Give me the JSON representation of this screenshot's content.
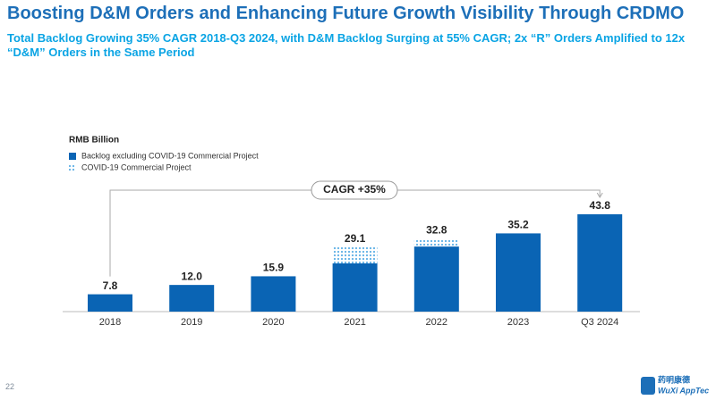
{
  "title": "Boosting D&M Orders and Enhancing Future Growth Visibility Through CRDMO",
  "subtitle": "Total Backlog Growing 35% CAGR 2018-Q3 2024, with D&M Backlog Surging at 55% CAGR; 2x “R” Orders Amplified to 12x “D&M” Orders in the Same Period",
  "page_number": "22",
  "logo": {
    "chinese": "药明康德",
    "name": "WuXi AppTec"
  },
  "chart_data": {
    "type": "stacked_bar",
    "unit_label": "RMB Billion",
    "categories": [
      "2018",
      "2019",
      "2020",
      "2021",
      "2022",
      "2023",
      "Q3 2024"
    ],
    "series": [
      {
        "name": "Backlog excluding COVID-19 Commercial Project",
        "color": "#0a64b4",
        "values": [
          7.8,
          12.0,
          15.9,
          21.7,
          29.3,
          35.2,
          43.8
        ]
      },
      {
        "name": "COVID-19 Commercial Project",
        "color": "#5fb0e6",
        "pattern": "dots",
        "values": [
          null,
          null,
          null,
          7.4,
          3.5,
          null,
          null
        ]
      }
    ],
    "totals": {
      "values": [
        7.8,
        12.0,
        15.9,
        29.1,
        32.8,
        35.2,
        43.8
      ],
      "value_labels": [
        "7.8",
        "12.0",
        "15.9",
        "29.1",
        "32.8",
        "35.2",
        "43.8"
      ]
    },
    "annotation": "CAGR +35%"
  }
}
